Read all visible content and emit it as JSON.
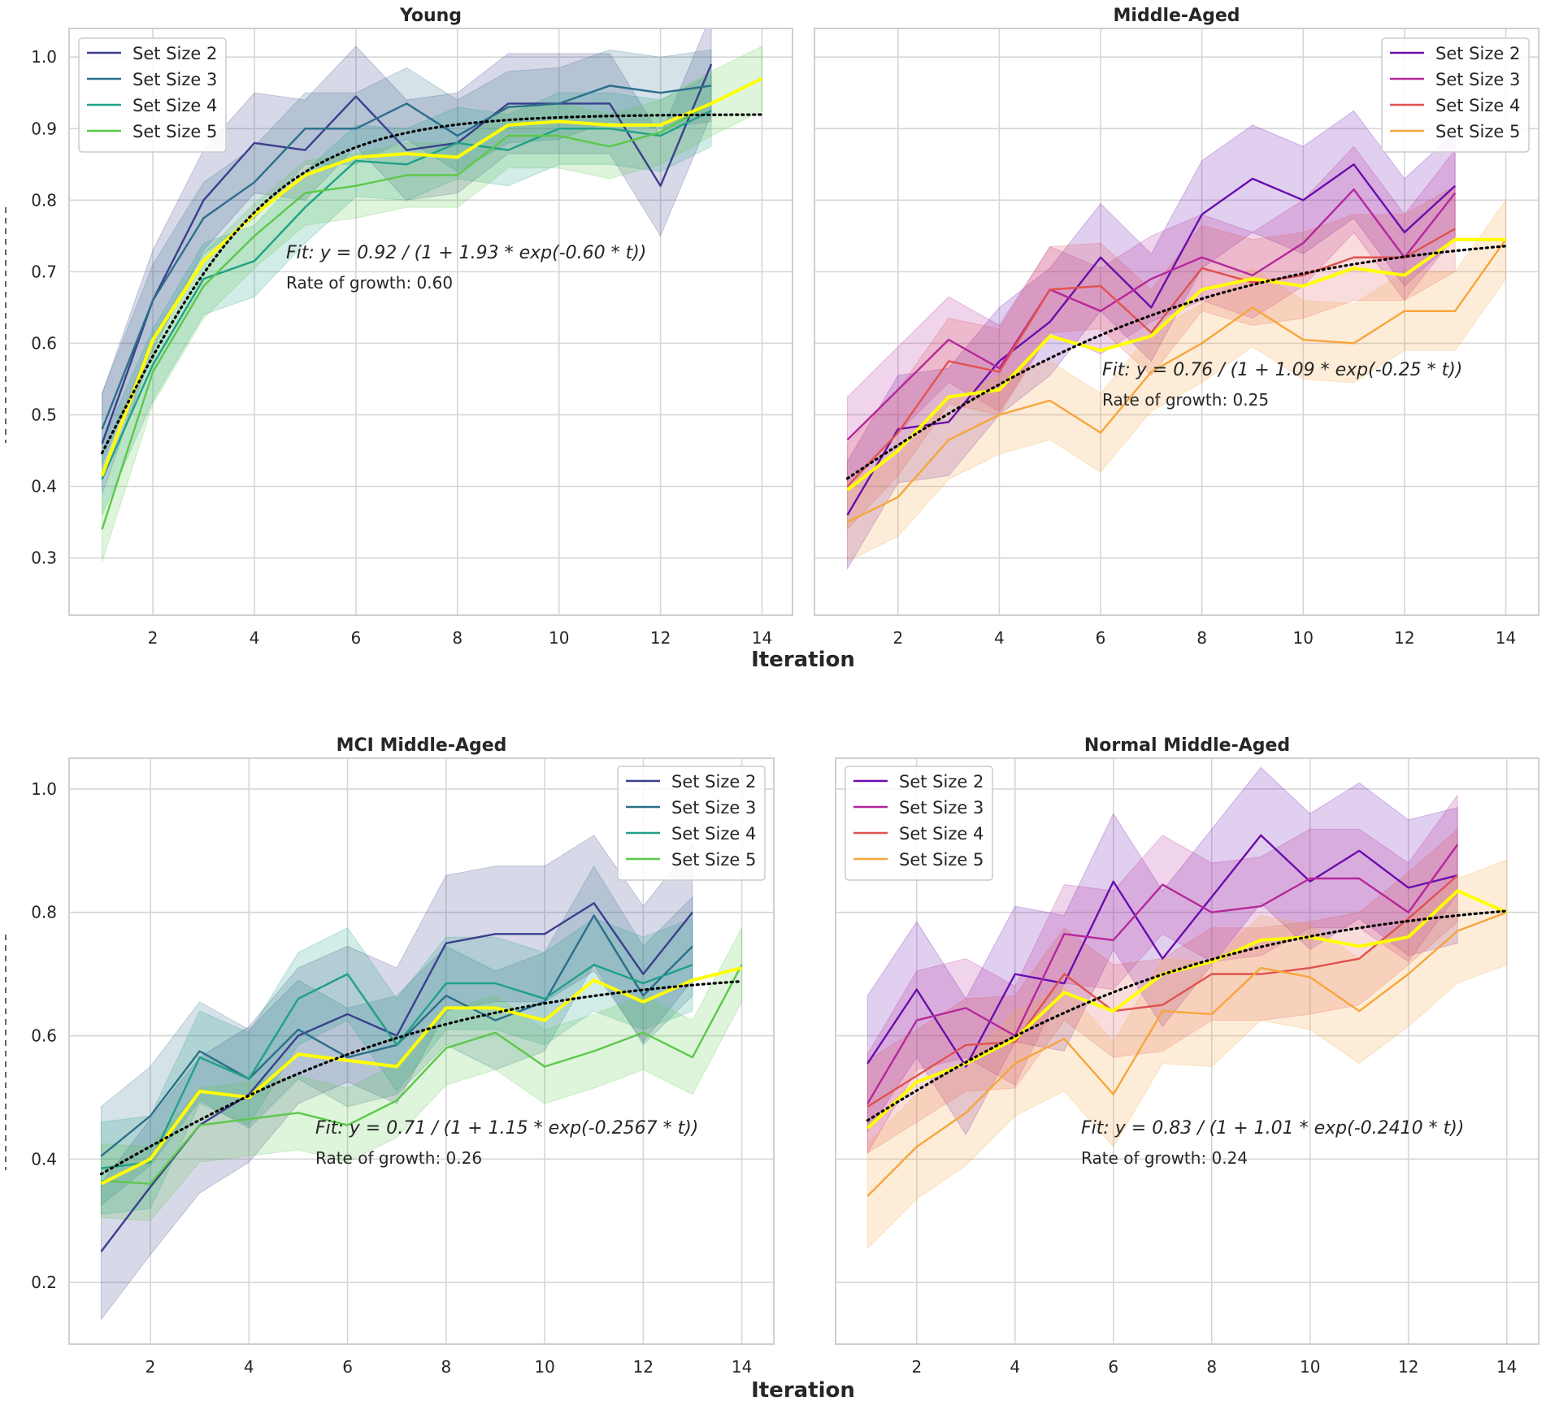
{
  "figure": {
    "xlabel": "Iteration",
    "fit_color": "#ffff00",
    "trend_color": "#000000"
  },
  "chart_data": [
    {
      "type": "line",
      "title": "Young",
      "xlabel": "",
      "ylabel": "",
      "xlim": [
        0.35,
        14.6
      ],
      "ylim": [
        0.22,
        1.04
      ],
      "xticks": [
        2,
        4,
        6,
        8,
        10,
        12,
        14
      ],
      "yticks": [
        0.3,
        0.4,
        0.5,
        0.6,
        0.7,
        0.8,
        0.9,
        1.0
      ],
      "ytick_labels": [
        "0.3",
        "0.4",
        "0.5",
        "0.6",
        "0.7",
        "0.8",
        "0.9",
        "1.0"
      ],
      "legend_position": "top-left",
      "series": [
        {
          "name": "Set Size 2",
          "color": "#3b3f8c",
          "x": [
            1,
            2,
            3,
            4,
            5,
            6,
            7,
            8,
            9,
            10,
            11,
            12,
            13
          ],
          "values": [
            0.46,
            0.66,
            0.8,
            0.88,
            0.87,
            0.945,
            0.87,
            0.88,
            0.935,
            0.935,
            0.935,
            0.82,
            0.99
          ],
          "ci": 0.07
        },
        {
          "name": "Set Size 3",
          "color": "#2b6f8a",
          "x": [
            1,
            2,
            3,
            4,
            5,
            6,
            7,
            8,
            9,
            10,
            11,
            12,
            13
          ],
          "values": [
            0.48,
            0.66,
            0.775,
            0.825,
            0.9,
            0.9,
            0.935,
            0.89,
            0.93,
            0.935,
            0.96,
            0.95,
            0.96
          ],
          "ci": 0.05
        },
        {
          "name": "Set Size 4",
          "color": "#1fa187",
          "x": [
            1,
            2,
            3,
            4,
            5,
            6,
            7,
            8,
            9,
            10,
            11,
            12,
            13
          ],
          "values": [
            0.41,
            0.57,
            0.69,
            0.715,
            0.79,
            0.855,
            0.85,
            0.88,
            0.87,
            0.9,
            0.9,
            0.89,
            0.925
          ],
          "ci": 0.05
        },
        {
          "name": "Set Size 5",
          "color": "#5cc84a",
          "x": [
            1,
            2,
            3,
            4,
            5,
            6,
            7,
            8,
            9,
            10,
            11,
            12,
            13,
            14
          ],
          "values": [
            0.34,
            0.56,
            0.68,
            0.75,
            0.81,
            0.82,
            0.835,
            0.835,
            0.89,
            0.89,
            0.875,
            0.895,
            0.935,
            0.97
          ],
          "ci": 0.045
        }
      ],
      "fit_line": {
        "x": [
          1,
          2,
          3,
          4,
          5,
          6,
          7,
          8,
          9,
          10,
          11,
          12,
          13,
          14
        ],
        "values": [
          0.415,
          0.605,
          0.715,
          0.78,
          0.835,
          0.86,
          0.865,
          0.86,
          0.905,
          0.91,
          0.905,
          0.905,
          0.935,
          0.97
        ]
      },
      "trend": {
        "L": 0.92,
        "A": 1.93,
        "k": 0.6
      },
      "annotation": {
        "fit_text": "Fit: y = 0.92 / (1 + 1.93 * exp(-0.60 * t))",
        "rate_text": "Rate of growth: 0.60"
      }
    },
    {
      "type": "line",
      "title": "Middle-Aged",
      "xlabel": "",
      "ylabel": "",
      "xlim": [
        0.35,
        14.65
      ],
      "ylim": [
        0.22,
        1.04
      ],
      "xticks": [
        2,
        4,
        6,
        8,
        10,
        12,
        14
      ],
      "yticks": [
        0.3,
        0.4,
        0.5,
        0.6,
        0.7,
        0.8,
        0.9,
        1.0
      ],
      "ytick_labels": [],
      "legend_position": "top-right",
      "series": [
        {
          "name": "Set Size 2",
          "color": "#6a0dad",
          "x": [
            1,
            2,
            3,
            4,
            5,
            6,
            7,
            8,
            9,
            10,
            11,
            12,
            13
          ],
          "values": [
            0.36,
            0.48,
            0.49,
            0.575,
            0.63,
            0.72,
            0.65,
            0.78,
            0.83,
            0.8,
            0.85,
            0.755,
            0.82
          ],
          "ci": 0.075
        },
        {
          "name": "Set Size 3",
          "color": "#b5279b",
          "x": [
            1,
            2,
            3,
            4,
            5,
            6,
            7,
            8,
            9,
            10,
            11,
            12,
            13
          ],
          "values": [
            0.465,
            0.535,
            0.605,
            0.565,
            0.675,
            0.645,
            0.69,
            0.72,
            0.695,
            0.74,
            0.815,
            0.72,
            0.81
          ],
          "ci": 0.06
        },
        {
          "name": "Set Size 4",
          "color": "#e0524f",
          "x": [
            1,
            2,
            3,
            4,
            5,
            6,
            7,
            8,
            9,
            10,
            11,
            12,
            13
          ],
          "values": [
            0.4,
            0.475,
            0.575,
            0.56,
            0.675,
            0.68,
            0.615,
            0.705,
            0.685,
            0.695,
            0.72,
            0.72,
            0.76
          ],
          "ci": 0.06
        },
        {
          "name": "Set Size 5",
          "color": "#f7a53b",
          "x": [
            1,
            2,
            3,
            4,
            5,
            6,
            7,
            8,
            9,
            10,
            11,
            12,
            13,
            14
          ],
          "values": [
            0.35,
            0.385,
            0.465,
            0.5,
            0.52,
            0.475,
            0.56,
            0.6,
            0.65,
            0.605,
            0.6,
            0.645,
            0.645,
            0.745
          ],
          "ci": 0.055
        }
      ],
      "fit_line": {
        "x": [
          1,
          2,
          3,
          4,
          5,
          6,
          7,
          8,
          9,
          10,
          11,
          12,
          13,
          14
        ],
        "values": [
          0.395,
          0.45,
          0.525,
          0.535,
          0.61,
          0.59,
          0.61,
          0.675,
          0.69,
          0.68,
          0.705,
          0.695,
          0.745,
          0.745
        ]
      },
      "trend": {
        "L": 0.76,
        "A": 1.09,
        "k": 0.25
      },
      "annotation": {
        "fit_text": "Fit: y = 0.76 / (1 + 1.09 * exp(-0.25 * t))",
        "rate_text": "Rate of growth: 0.25"
      }
    },
    {
      "type": "line",
      "title": "MCI Middle-Aged",
      "xlabel": "",
      "ylabel": "",
      "xlim": [
        0.35,
        14.65
      ],
      "ylim": [
        0.1,
        1.05
      ],
      "xticks": [
        2,
        4,
        6,
        8,
        10,
        12,
        14
      ],
      "yticks": [
        0.2,
        0.4,
        0.6,
        0.8,
        1.0
      ],
      "ytick_labels": [
        "0.2",
        "0.4",
        "0.6",
        "0.8",
        "1.0"
      ],
      "legend_position": "top-right",
      "series": [
        {
          "name": "Set Size 2",
          "color": "#3b3f8c",
          "x": [
            1,
            2,
            3,
            4,
            5,
            6,
            7,
            8,
            9,
            10,
            11,
            12,
            13
          ],
          "values": [
            0.25,
            0.355,
            0.455,
            0.505,
            0.6,
            0.635,
            0.6,
            0.75,
            0.765,
            0.765,
            0.815,
            0.7,
            0.8
          ],
          "ci": 0.11
        },
        {
          "name": "Set Size 3",
          "color": "#2b6f8a",
          "x": [
            1,
            2,
            3,
            4,
            5,
            6,
            7,
            8,
            9,
            10,
            11,
            12,
            13
          ],
          "values": [
            0.405,
            0.47,
            0.575,
            0.53,
            0.61,
            0.565,
            0.585,
            0.665,
            0.625,
            0.655,
            0.795,
            0.665,
            0.745
          ],
          "ci": 0.08
        },
        {
          "name": "Set Size 4",
          "color": "#1fa187",
          "x": [
            1,
            2,
            3,
            4,
            5,
            6,
            7,
            8,
            9,
            10,
            11,
            12,
            13
          ],
          "values": [
            0.385,
            0.395,
            0.565,
            0.53,
            0.66,
            0.7,
            0.585,
            0.685,
            0.685,
            0.66,
            0.715,
            0.685,
            0.715
          ],
          "ci": 0.075
        },
        {
          "name": "Set Size 5",
          "color": "#5cc84a",
          "x": [
            1,
            2,
            3,
            4,
            5,
            6,
            7,
            8,
            9,
            10,
            11,
            12,
            13,
            14
          ],
          "values": [
            0.365,
            0.36,
            0.455,
            0.465,
            0.475,
            0.455,
            0.495,
            0.58,
            0.605,
            0.55,
            0.575,
            0.605,
            0.565,
            0.715
          ],
          "ci": 0.06
        }
      ],
      "fit_line": {
        "x": [
          1,
          2,
          3,
          4,
          5,
          6,
          7,
          8,
          9,
          10,
          11,
          12,
          13,
          14
        ],
        "values": [
          0.36,
          0.4,
          0.51,
          0.5,
          0.57,
          0.56,
          0.55,
          0.645,
          0.645,
          0.625,
          0.69,
          0.655,
          0.69,
          0.71
        ]
      },
      "trend": {
        "L": 0.71,
        "A": 1.15,
        "k": 0.2567
      },
      "annotation": {
        "fit_text": "Fit: y = 0.71 / (1 + 1.15 * exp(-0.2567 * t))",
        "rate_text": "Rate of growth: 0.26"
      }
    },
    {
      "type": "line",
      "title": "Normal Middle-Aged",
      "xlabel": "",
      "ylabel": "",
      "xlim": [
        0.35,
        14.65
      ],
      "ylim": [
        0.1,
        1.05
      ],
      "xticks": [
        2,
        4,
        6,
        8,
        10,
        12,
        14
      ],
      "yticks": [
        0.2,
        0.4,
        0.6,
        0.8,
        1.0
      ],
      "ytick_labels": [],
      "legend_position": "top-left",
      "series": [
        {
          "name": "Set Size 2",
          "color": "#6a0dad",
          "x": [
            1,
            2,
            3,
            4,
            5,
            6,
            7,
            8,
            9,
            10,
            11,
            12,
            13
          ],
          "values": [
            0.555,
            0.675,
            0.55,
            0.7,
            0.685,
            0.85,
            0.725,
            0.825,
            0.925,
            0.85,
            0.9,
            0.84,
            0.86
          ],
          "ci": 0.11
        },
        {
          "name": "Set Size 3",
          "color": "#b5279b",
          "x": [
            1,
            2,
            3,
            4,
            5,
            6,
            7,
            8,
            9,
            10,
            11,
            12,
            13
          ],
          "values": [
            0.49,
            0.625,
            0.645,
            0.6,
            0.765,
            0.755,
            0.845,
            0.8,
            0.81,
            0.855,
            0.855,
            0.8,
            0.91
          ],
          "ci": 0.08
        },
        {
          "name": "Set Size 4",
          "color": "#e0524f",
          "x": [
            1,
            2,
            3,
            4,
            5,
            6,
            7,
            8,
            9,
            10,
            11,
            12,
            13
          ],
          "values": [
            0.485,
            0.535,
            0.585,
            0.59,
            0.7,
            0.64,
            0.65,
            0.7,
            0.7,
            0.71,
            0.725,
            0.79,
            0.86
          ],
          "ci": 0.075
        },
        {
          "name": "Set Size 5",
          "color": "#f7a53b",
          "x": [
            1,
            2,
            3,
            4,
            5,
            6,
            7,
            8,
            9,
            10,
            11,
            12,
            13,
            14
          ],
          "values": [
            0.34,
            0.42,
            0.475,
            0.555,
            0.595,
            0.505,
            0.64,
            0.635,
            0.71,
            0.695,
            0.64,
            0.7,
            0.77,
            0.8
          ],
          "ci": 0.085
        }
      ],
      "fit_line": {
        "x": [
          1,
          2,
          3,
          4,
          5,
          6,
          7,
          8,
          9,
          10,
          11,
          12,
          13,
          14
        ],
        "values": [
          0.45,
          0.525,
          0.555,
          0.595,
          0.67,
          0.64,
          0.7,
          0.72,
          0.755,
          0.76,
          0.745,
          0.76,
          0.835,
          0.8
        ]
      },
      "trend": {
        "L": 0.83,
        "A": 1.01,
        "k": 0.241
      },
      "annotation": {
        "fit_text": "Fit: y = 0.83 / (1 + 1.01 * exp(-0.2410 * t))",
        "rate_text": "Rate of growth: 0.24"
      }
    }
  ]
}
